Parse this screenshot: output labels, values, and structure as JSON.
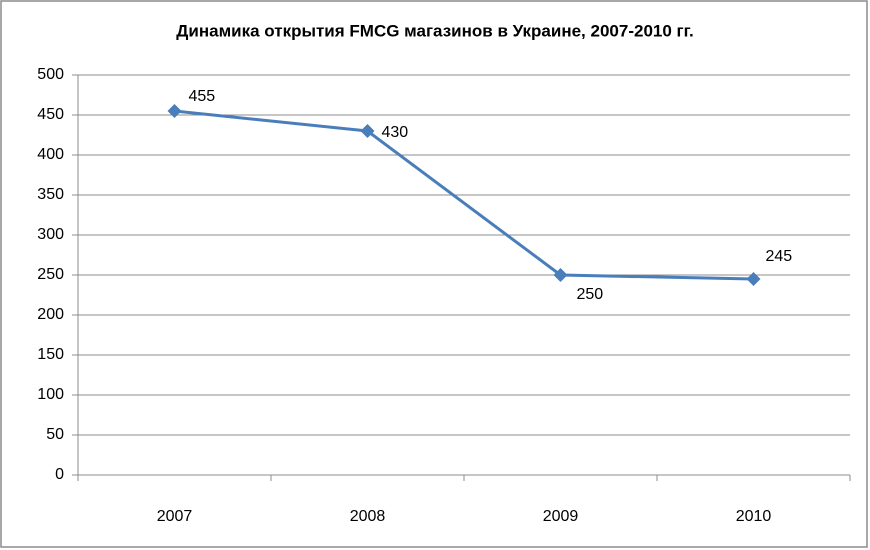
{
  "chart_data": {
    "type": "line",
    "title": "Динамика открытия FMCG магазинов в Украине, 2007-2010 гг.",
    "categories": [
      "2007",
      "2008",
      "2009",
      "2010"
    ],
    "values": [
      455,
      430,
      250,
      245
    ],
    "color": "#4a7ebb",
    "ylim": [
      0,
      500
    ],
    "yticks": [
      0,
      50,
      100,
      150,
      200,
      250,
      300,
      350,
      400,
      450,
      500
    ],
    "grid": true
  }
}
